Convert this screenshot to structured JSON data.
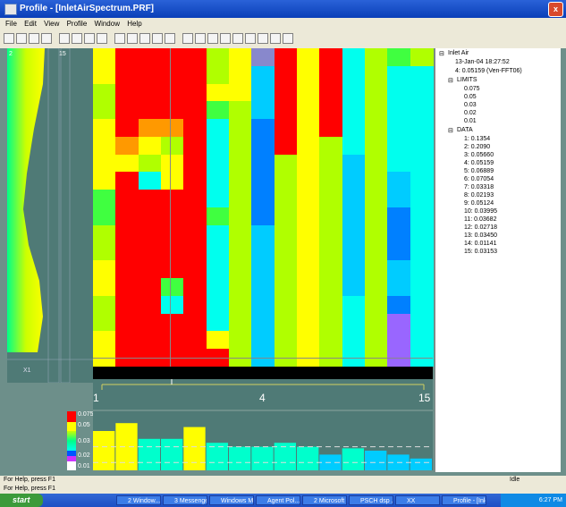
{
  "window": {
    "title": "Profile - [InletAirSpectrum.PRF]",
    "close_glyph": "x"
  },
  "menu": [
    "File",
    "Edit",
    "View",
    "Profile",
    "Window",
    "Help"
  ],
  "toolbar_icons": [
    "new-icon",
    "open-icon",
    "save-icon",
    "print-icon",
    "cut-icon",
    "copy-icon",
    "paste-icon",
    "undo-icon",
    "chart-icon",
    "table-icon",
    "grid-icon",
    "play-icon",
    "stop-icon",
    "zoom-in-icon",
    "zoom-out-icon",
    "zoom-fit-icon",
    "color-icon",
    "layout-icon",
    "pointer-icon",
    "crosshair-icon",
    "marker-icon",
    "help-icon"
  ],
  "left_panel": {
    "top_number": "2",
    "mid_number": "15",
    "bottom_marker": "X1"
  },
  "heatmap": {
    "colors": {
      "red": "#ff0000",
      "orange": "#ff9900",
      "yellow": "#ffff00",
      "lime": "#b0ff00",
      "green": "#40ff40",
      "cyan": "#00ffee",
      "aqua": "#00ccff",
      "blue": "#0080ff",
      "purple": "#9966ff",
      "gray": "#8888cc"
    },
    "columns": [
      [
        "yellow",
        "yellow",
        "lime",
        "lime",
        "yellow",
        "yellow",
        "yellow",
        "yellow",
        "green",
        "green",
        "lime",
        "lime",
        "yellow",
        "yellow",
        "lime",
        "lime",
        "yellow",
        "yellow"
      ],
      [
        "red",
        "red",
        "red",
        "red",
        "red",
        "orange",
        "yellow",
        "red",
        "red",
        "red",
        "red",
        "red",
        "red",
        "red",
        "red",
        "red",
        "red",
        "red"
      ],
      [
        "red",
        "red",
        "red",
        "red",
        "orange",
        "yellow",
        "lime",
        "cyan",
        "red",
        "red",
        "red",
        "red",
        "red",
        "red",
        "red",
        "red",
        "red",
        "red"
      ],
      [
        "red",
        "red",
        "red",
        "red",
        "orange",
        "lime",
        "yellow",
        "yellow",
        "red",
        "red",
        "red",
        "red",
        "red",
        "green",
        "cyan",
        "red",
        "red",
        "red"
      ],
      [
        "red",
        "red",
        "red",
        "red",
        "red",
        "red",
        "red",
        "red",
        "red",
        "red",
        "red",
        "red",
        "red",
        "red",
        "red",
        "red",
        "red",
        "red"
      ],
      [
        "lime",
        "lime",
        "yellow",
        "green",
        "cyan",
        "cyan",
        "cyan",
        "cyan",
        "cyan",
        "green",
        "cyan",
        "cyan",
        "cyan",
        "cyan",
        "cyan",
        "cyan",
        "yellow",
        "red"
      ],
      [
        "yellow",
        "yellow",
        "yellow",
        "lime",
        "lime",
        "lime",
        "lime",
        "lime",
        "lime",
        "lime",
        "lime",
        "lime",
        "lime",
        "lime",
        "lime",
        "lime",
        "lime",
        "lime"
      ],
      [
        "gray",
        "aqua",
        "aqua",
        "aqua",
        "blue",
        "blue",
        "blue",
        "blue",
        "blue",
        "blue",
        "aqua",
        "aqua",
        "aqua",
        "aqua",
        "aqua",
        "aqua",
        "aqua",
        "aqua"
      ],
      [
        "red",
        "red",
        "red",
        "red",
        "red",
        "red",
        "lime",
        "lime",
        "lime",
        "lime",
        "lime",
        "lime",
        "lime",
        "lime",
        "lime",
        "lime",
        "lime",
        "lime"
      ],
      [
        "yellow",
        "yellow",
        "yellow",
        "yellow",
        "yellow",
        "yellow",
        "yellow",
        "yellow",
        "yellow",
        "yellow",
        "yellow",
        "yellow",
        "yellow",
        "yellow",
        "yellow",
        "yellow",
        "yellow",
        "yellow"
      ],
      [
        "red",
        "red",
        "red",
        "red",
        "red",
        "lime",
        "lime",
        "lime",
        "lime",
        "lime",
        "lime",
        "lime",
        "lime",
        "lime",
        "lime",
        "lime",
        "lime",
        "lime"
      ],
      [
        "cyan",
        "cyan",
        "cyan",
        "cyan",
        "cyan",
        "cyan",
        "aqua",
        "aqua",
        "aqua",
        "aqua",
        "aqua",
        "aqua",
        "aqua",
        "aqua",
        "cyan",
        "cyan",
        "cyan",
        "cyan"
      ],
      [
        "lime",
        "lime",
        "lime",
        "lime",
        "lime",
        "lime",
        "lime",
        "lime",
        "lime",
        "lime",
        "lime",
        "lime",
        "lime",
        "lime",
        "lime",
        "lime",
        "lime",
        "lime"
      ],
      [
        "green",
        "cyan",
        "cyan",
        "cyan",
        "cyan",
        "cyan",
        "cyan",
        "aqua",
        "aqua",
        "blue",
        "blue",
        "blue",
        "aqua",
        "aqua",
        "blue",
        "purple",
        "purple",
        "purple"
      ],
      [
        "lime",
        "cyan",
        "cyan",
        "cyan",
        "cyan",
        "cyan",
        "cyan",
        "cyan",
        "cyan",
        "cyan",
        "cyan",
        "cyan",
        "cyan",
        "cyan",
        "cyan",
        "cyan",
        "cyan",
        "cyan"
      ]
    ]
  },
  "axis": {
    "start": "1",
    "mid": "4",
    "end": "15"
  },
  "legend": {
    "labels": [
      "0.075",
      "0.05",
      "0.03",
      "0.02",
      "0.01"
    ],
    "colors": [
      "#ff0000",
      "#ffff00",
      "#00ffcc",
      "#0055ff",
      "#cc33ff",
      "#ffffff"
    ]
  },
  "bottom_plot": {
    "levels": [
      0.05,
      0.06,
      0.04,
      0.04,
      0.055,
      0.035,
      0.03,
      0.03,
      0.035,
      0.03,
      0.02,
      0.028,
      0.025,
      0.02,
      0.015
    ]
  },
  "tree": {
    "root": "Inlet Air",
    "root_children": [
      "13-Jan-04 18:27:52",
      "4: 0.05159  (Ven-FFT06)"
    ],
    "limits_label": "LIMITS",
    "limits": [
      "0.075",
      "0.05",
      "0.03",
      "0.02",
      "0.01"
    ],
    "data_label": "DATA",
    "data": [
      "1: 0.1354",
      "2: 0.2090",
      "3: 0.05660",
      "4: 0.05159",
      "5: 0.06889",
      "6: 0.07054",
      "7: 0.03318",
      "8: 0.02193",
      "9: 0.05124",
      "10: 0.03995",
      "11: 0.03682",
      "12: 0.02718",
      "13: 0.03450",
      "14: 0.01141",
      "15: 0.03153"
    ]
  },
  "status": {
    "line1": "For Help, press F1",
    "line2": "For Help, press F1",
    "right": "Idle"
  },
  "taskbar": {
    "start": "start",
    "tasks": [
      "2 Window...",
      "3 Messenger",
      "Windows Me...",
      "Agent Pol...",
      "2 Microsoft ...",
      "PSCH dsp ...",
      "XX",
      "Profile - [Inle..."
    ],
    "clock": "6:27 PM"
  }
}
